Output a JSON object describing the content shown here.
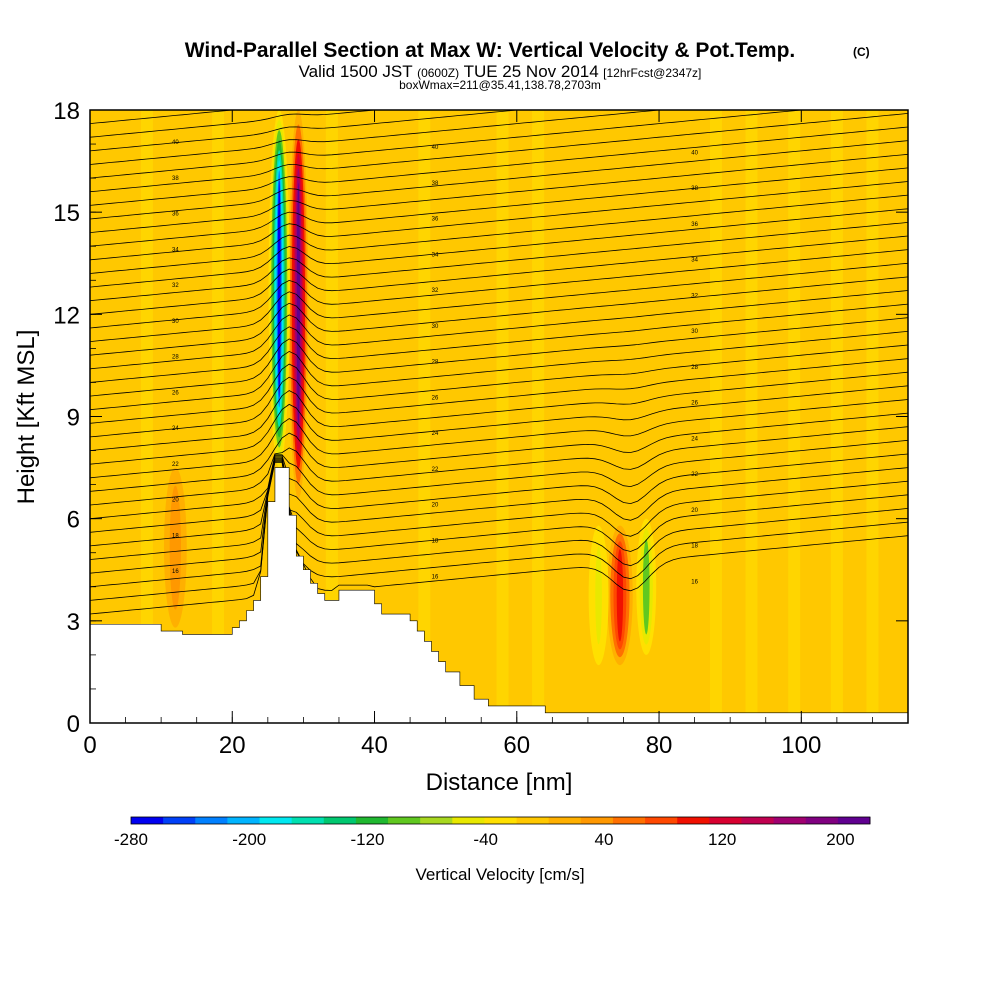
{
  "chart_data": {
    "type": "heatmap",
    "title": "Wind-Parallel Section at Max W: Vertical Velocity & Pot.Temp.",
    "title_mark": "(C)",
    "subtitle": {
      "valid_prefix": "Valid 1500 JST",
      "utc": "(0600Z)",
      "date": "TUE 25 Nov 2014",
      "forecast": "[12hrFcst@2347z]"
    },
    "subtitle2": "boxWmax=211@35.41,138.78,2703m",
    "xlabel": "Distance [nm]",
    "ylabel": "Height [Kft MSL]",
    "xlim": [
      0,
      115
    ],
    "ylim": [
      0,
      18
    ],
    "x_ticks": [
      0,
      20,
      40,
      60,
      80,
      100
    ],
    "y_ticks": [
      0,
      3,
      6,
      9,
      12,
      15,
      18
    ],
    "colorbar": {
      "label": "Vertical Velocity [cm/s]",
      "range": [
        -280,
        220
      ],
      "tick_values": [
        -280,
        -200,
        -120,
        -40,
        40,
        120,
        200
      ],
      "colors": [
        "#0000f0",
        "#0040f8",
        "#0080ff",
        "#00b4ff",
        "#00e8f0",
        "#00e0b0",
        "#00c870",
        "#20b830",
        "#60c820",
        "#a8d820",
        "#e8e800",
        "#ffe000",
        "#ffc800",
        "#ffb000",
        "#ff9800",
        "#ff7000",
        "#ff4800",
        "#f01000",
        "#d80030",
        "#c00050",
        "#a00070",
        "#800080",
        "#600090"
      ]
    },
    "terrain_profile_kft": [
      [
        0,
        2.9
      ],
      [
        10,
        2.9
      ],
      [
        10,
        2.7
      ],
      [
        13,
        2.7
      ],
      [
        13,
        2.6
      ],
      [
        20,
        2.6
      ],
      [
        20,
        2.8
      ],
      [
        21,
        2.8
      ],
      [
        21,
        3.0
      ],
      [
        22,
        3.0
      ],
      [
        22,
        3.3
      ],
      [
        23,
        3.3
      ],
      [
        23,
        3.6
      ],
      [
        24,
        3.6
      ],
      [
        24,
        4.3
      ],
      [
        25,
        4.3
      ],
      [
        25,
        6.5
      ],
      [
        26,
        6.5
      ],
      [
        26,
        7.5
      ],
      [
        28,
        7.5
      ],
      [
        28,
        6.1
      ],
      [
        29,
        6.1
      ],
      [
        29,
        4.9
      ],
      [
        30,
        4.9
      ],
      [
        30,
        4.5
      ],
      [
        31,
        4.5
      ],
      [
        31,
        4.1
      ],
      [
        32,
        4.1
      ],
      [
        32,
        3.8
      ],
      [
        33,
        3.8
      ],
      [
        33,
        3.6
      ],
      [
        35,
        3.6
      ],
      [
        35,
        3.9
      ],
      [
        40,
        3.9
      ],
      [
        40,
        3.5
      ],
      [
        41,
        3.5
      ],
      [
        41,
        3.2
      ],
      [
        45,
        3.2
      ],
      [
        45,
        3.0
      ],
      [
        46,
        3.0
      ],
      [
        46,
        2.7
      ],
      [
        47,
        2.7
      ],
      [
        47,
        2.4
      ],
      [
        48,
        2.4
      ],
      [
        48,
        2.1
      ],
      [
        49,
        2.1
      ],
      [
        49,
        1.8
      ],
      [
        50,
        1.8
      ],
      [
        50,
        1.5
      ],
      [
        52,
        1.5
      ],
      [
        52,
        1.1
      ],
      [
        54,
        1.1
      ],
      [
        54,
        0.7
      ],
      [
        56,
        0.7
      ],
      [
        56,
        0.5
      ],
      [
        64,
        0.5
      ],
      [
        64,
        0.3
      ],
      [
        115,
        0.3
      ]
    ],
    "updrafts": [
      {
        "x": 29.3,
        "y0": 6.6,
        "y1": 18,
        "tilt_nm_per_kft": 0.0,
        "width_nm": 1.4,
        "peak_cms": 200
      },
      {
        "x": 26.6,
        "y0": 7.5,
        "y1": 18,
        "tilt_nm_per_kft": 0.06,
        "width_nm": 1.5,
        "peak_cms": -260
      },
      {
        "x": 74.5,
        "y0": 1.7,
        "y1": 5.8,
        "tilt_nm_per_kft": 0.0,
        "width_nm": 1.8,
        "peak_cms": 110
      },
      {
        "x": 71.5,
        "y0": 1.7,
        "y1": 5.8,
        "tilt_nm_per_kft": 0.0,
        "width_nm": 1.4,
        "peak_cms": -60
      },
      {
        "x": 78.2,
        "y0": 2.0,
        "y1": 6.0,
        "tilt_nm_per_kft": 0.0,
        "width_nm": 1.4,
        "peak_cms": -90
      },
      {
        "x": 12,
        "y0": 2.8,
        "y1": 7.5,
        "tilt_nm_per_kft": 0.0,
        "width_nm": 1.6,
        "peak_cms": 35
      }
    ],
    "isentrope_labels": [
      "40",
      "38",
      "36",
      "34",
      "32",
      "30",
      "28",
      "26",
      "24",
      "22",
      "20",
      "18",
      "16"
    ]
  }
}
